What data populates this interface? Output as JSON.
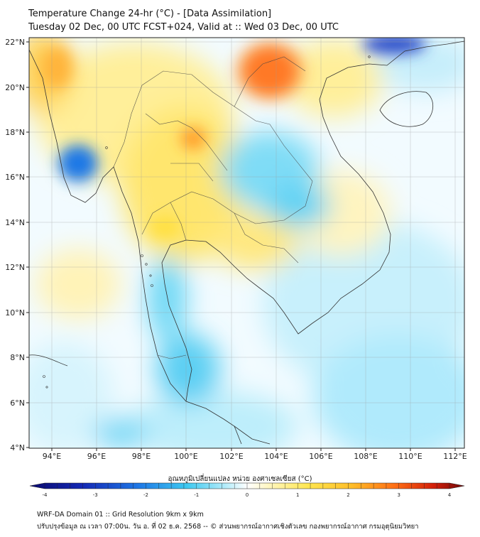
{
  "title_line1": "Temperature Change 24-hr (°C) - [Data Assimilation]",
  "title_line2": "Tuesday 02 Dec, 00 UTC FCST+024, Valid at :: Wed 03 Dec, 00 UTC",
  "lat_ticks": [
    "22°N",
    "20°N",
    "18°N",
    "16°N",
    "14°N",
    "12°N",
    "10°N",
    "8°N",
    "6°N",
    "4°N"
  ],
  "lon_ticks": [
    "94°E",
    "96°E",
    "98°E",
    "100°E",
    "102°E",
    "104°E",
    "106°E",
    "108°E",
    "110°E",
    "112°E"
  ],
  "colorbar_label": "อุณหภูมิเปลี่ยนแปลง หน่วย องศาเซลเซียส (°C)",
  "colorbar_ticks": [
    "-4",
    "-3",
    "-2",
    "-1",
    "0",
    "1",
    "2",
    "3",
    "4"
  ],
  "colorbar_range": [
    -4,
    4
  ],
  "colors": {
    "cold_extreme": "#0a0a6e",
    "cold": "#1e5adc",
    "cool": "#3cc8f0",
    "neutral": "#ffffff",
    "warm": "#ffe650",
    "hot": "#ff8c1e",
    "hot_extreme": "#6e0a0a"
  },
  "footer_line1": "WRF-DA Domain 01 :: Grid Resolution 9km x 9km",
  "footer_line2": "ปรับปรุงข้อมูล ณ เวลา 07:00น. วัน อ. ที่ 02 ธ.ค. 2568 -- © ส่วนพยากรณ์อากาศเชิงตัวเลข กองพยากรณ์อากาศ กรมอุตุนิยมวิทยา"
}
